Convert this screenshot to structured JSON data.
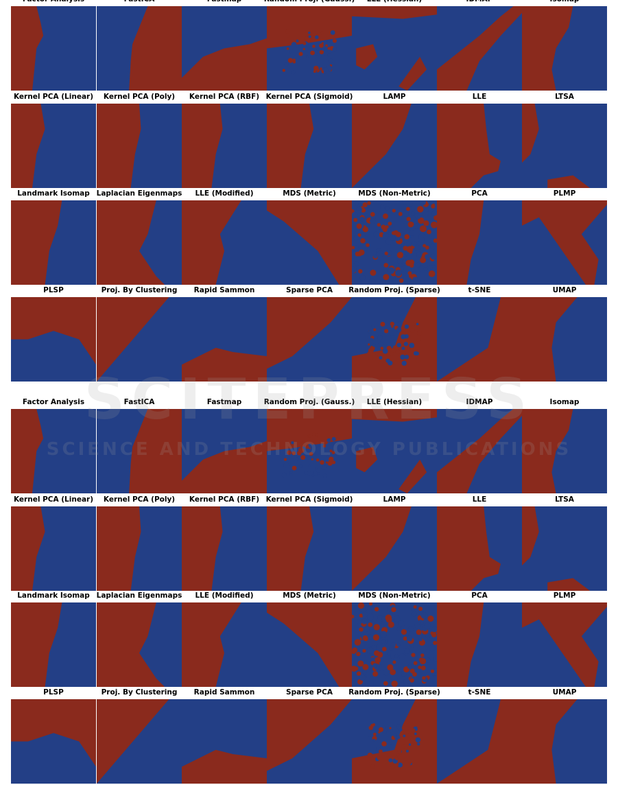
{
  "colors": {
    "class_a": "#8a2a1d",
    "class_b": "#233f86"
  },
  "groups": [
    {
      "titles": [
        "Factor Analysis",
        "FastICA",
        "Fastmap",
        "Random Proj. (Gauss.)",
        "LLE (Hessian)",
        "IDMAP",
        "Isomap",
        "Kernel PCA (Linear)",
        "Kernel PCA (Poly)",
        "Kernel PCA (RBF)",
        "Kernel PCA (Sigmoid)",
        "LAMP",
        "LLE",
        "LTSA",
        "Landmark Isomap",
        "Laplacian Eigenmaps",
        "LLE (Modified)",
        "MDS (Metric)",
        "MDS (Non-Metric)",
        "PCA",
        "PLMP",
        "PLSP",
        "Proj. By Clustering",
        "Rapid Sammon",
        "Sparse PCA",
        "Random Proj. (Sparse)",
        "t-SNE",
        "UMAP"
      ]
    },
    {
      "titles": [
        "Factor Analysis",
        "FastICA",
        "Fastmap",
        "Random Proj. (Gauss.)",
        "LLE (Hessian)",
        "IDMAP",
        "Isomap",
        "Kernel PCA (Linear)",
        "Kernel PCA (Poly)",
        "Kernel PCA (RBF)",
        "Kernel PCA (Sigmoid)",
        "LAMP",
        "LLE",
        "LTSA",
        "Landmark Isomap",
        "Laplacian Eigenmaps",
        "LLE (Modified)",
        "MDS (Metric)",
        "MDS (Non-Metric)",
        "PCA",
        "PLMP",
        "PLSP",
        "Proj. By Clustering",
        "Rapid Sammon",
        "Sparse PCA",
        "Random Proj. (Sparse)",
        "t-SNE",
        "UMAP"
      ]
    }
  ],
  "watermark": {
    "line1": "SCITEPRESS",
    "line2": "SCIENCE AND TECHNOLOGY PUBLICATIONS"
  }
}
